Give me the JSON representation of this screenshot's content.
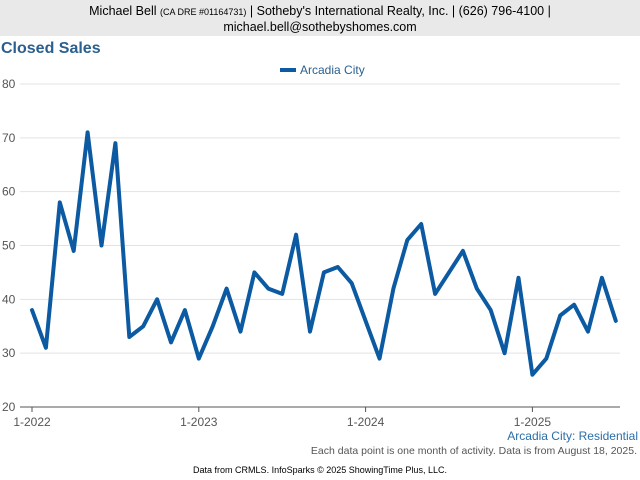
{
  "header": {
    "agent": "Michael Bell",
    "license": "(CA DRE #01164731)",
    "company_phone": "| Sotheby's International Realty, Inc. | (626) 796-4100 |",
    "email": "michael.bell@sothebyshomes.com"
  },
  "chart_data": {
    "type": "line",
    "title": "Closed Sales",
    "legend_position": "top-center",
    "series": [
      {
        "name": "Arcadia City",
        "color": "#0b5aa2",
        "values": [
          38,
          31,
          58,
          49,
          71,
          50,
          69,
          33,
          35,
          40,
          32,
          38,
          29,
          35,
          42,
          34,
          45,
          42,
          41,
          52,
          34,
          45,
          46,
          43,
          36,
          29,
          42,
          51,
          54,
          41,
          45,
          49,
          42,
          38,
          30,
          44,
          26,
          29,
          37,
          39,
          34,
          44,
          36
        ]
      }
    ],
    "x_start": "2022-01",
    "x_ticks": [
      "1-2022",
      "1-2023",
      "1-2024",
      "1-2025"
    ],
    "y_ticks": [
      20,
      30,
      40,
      50,
      60,
      70,
      80
    ],
    "ylim": [
      20,
      80
    ],
    "grid": true,
    "annotation": "Arcadia City: Residential",
    "note": "Each data point is one month of activity. Data is from August 18, 2025."
  },
  "credit": "Data from CRMLS. InfoSparks © 2025 ShowingTime Plus, LLC."
}
